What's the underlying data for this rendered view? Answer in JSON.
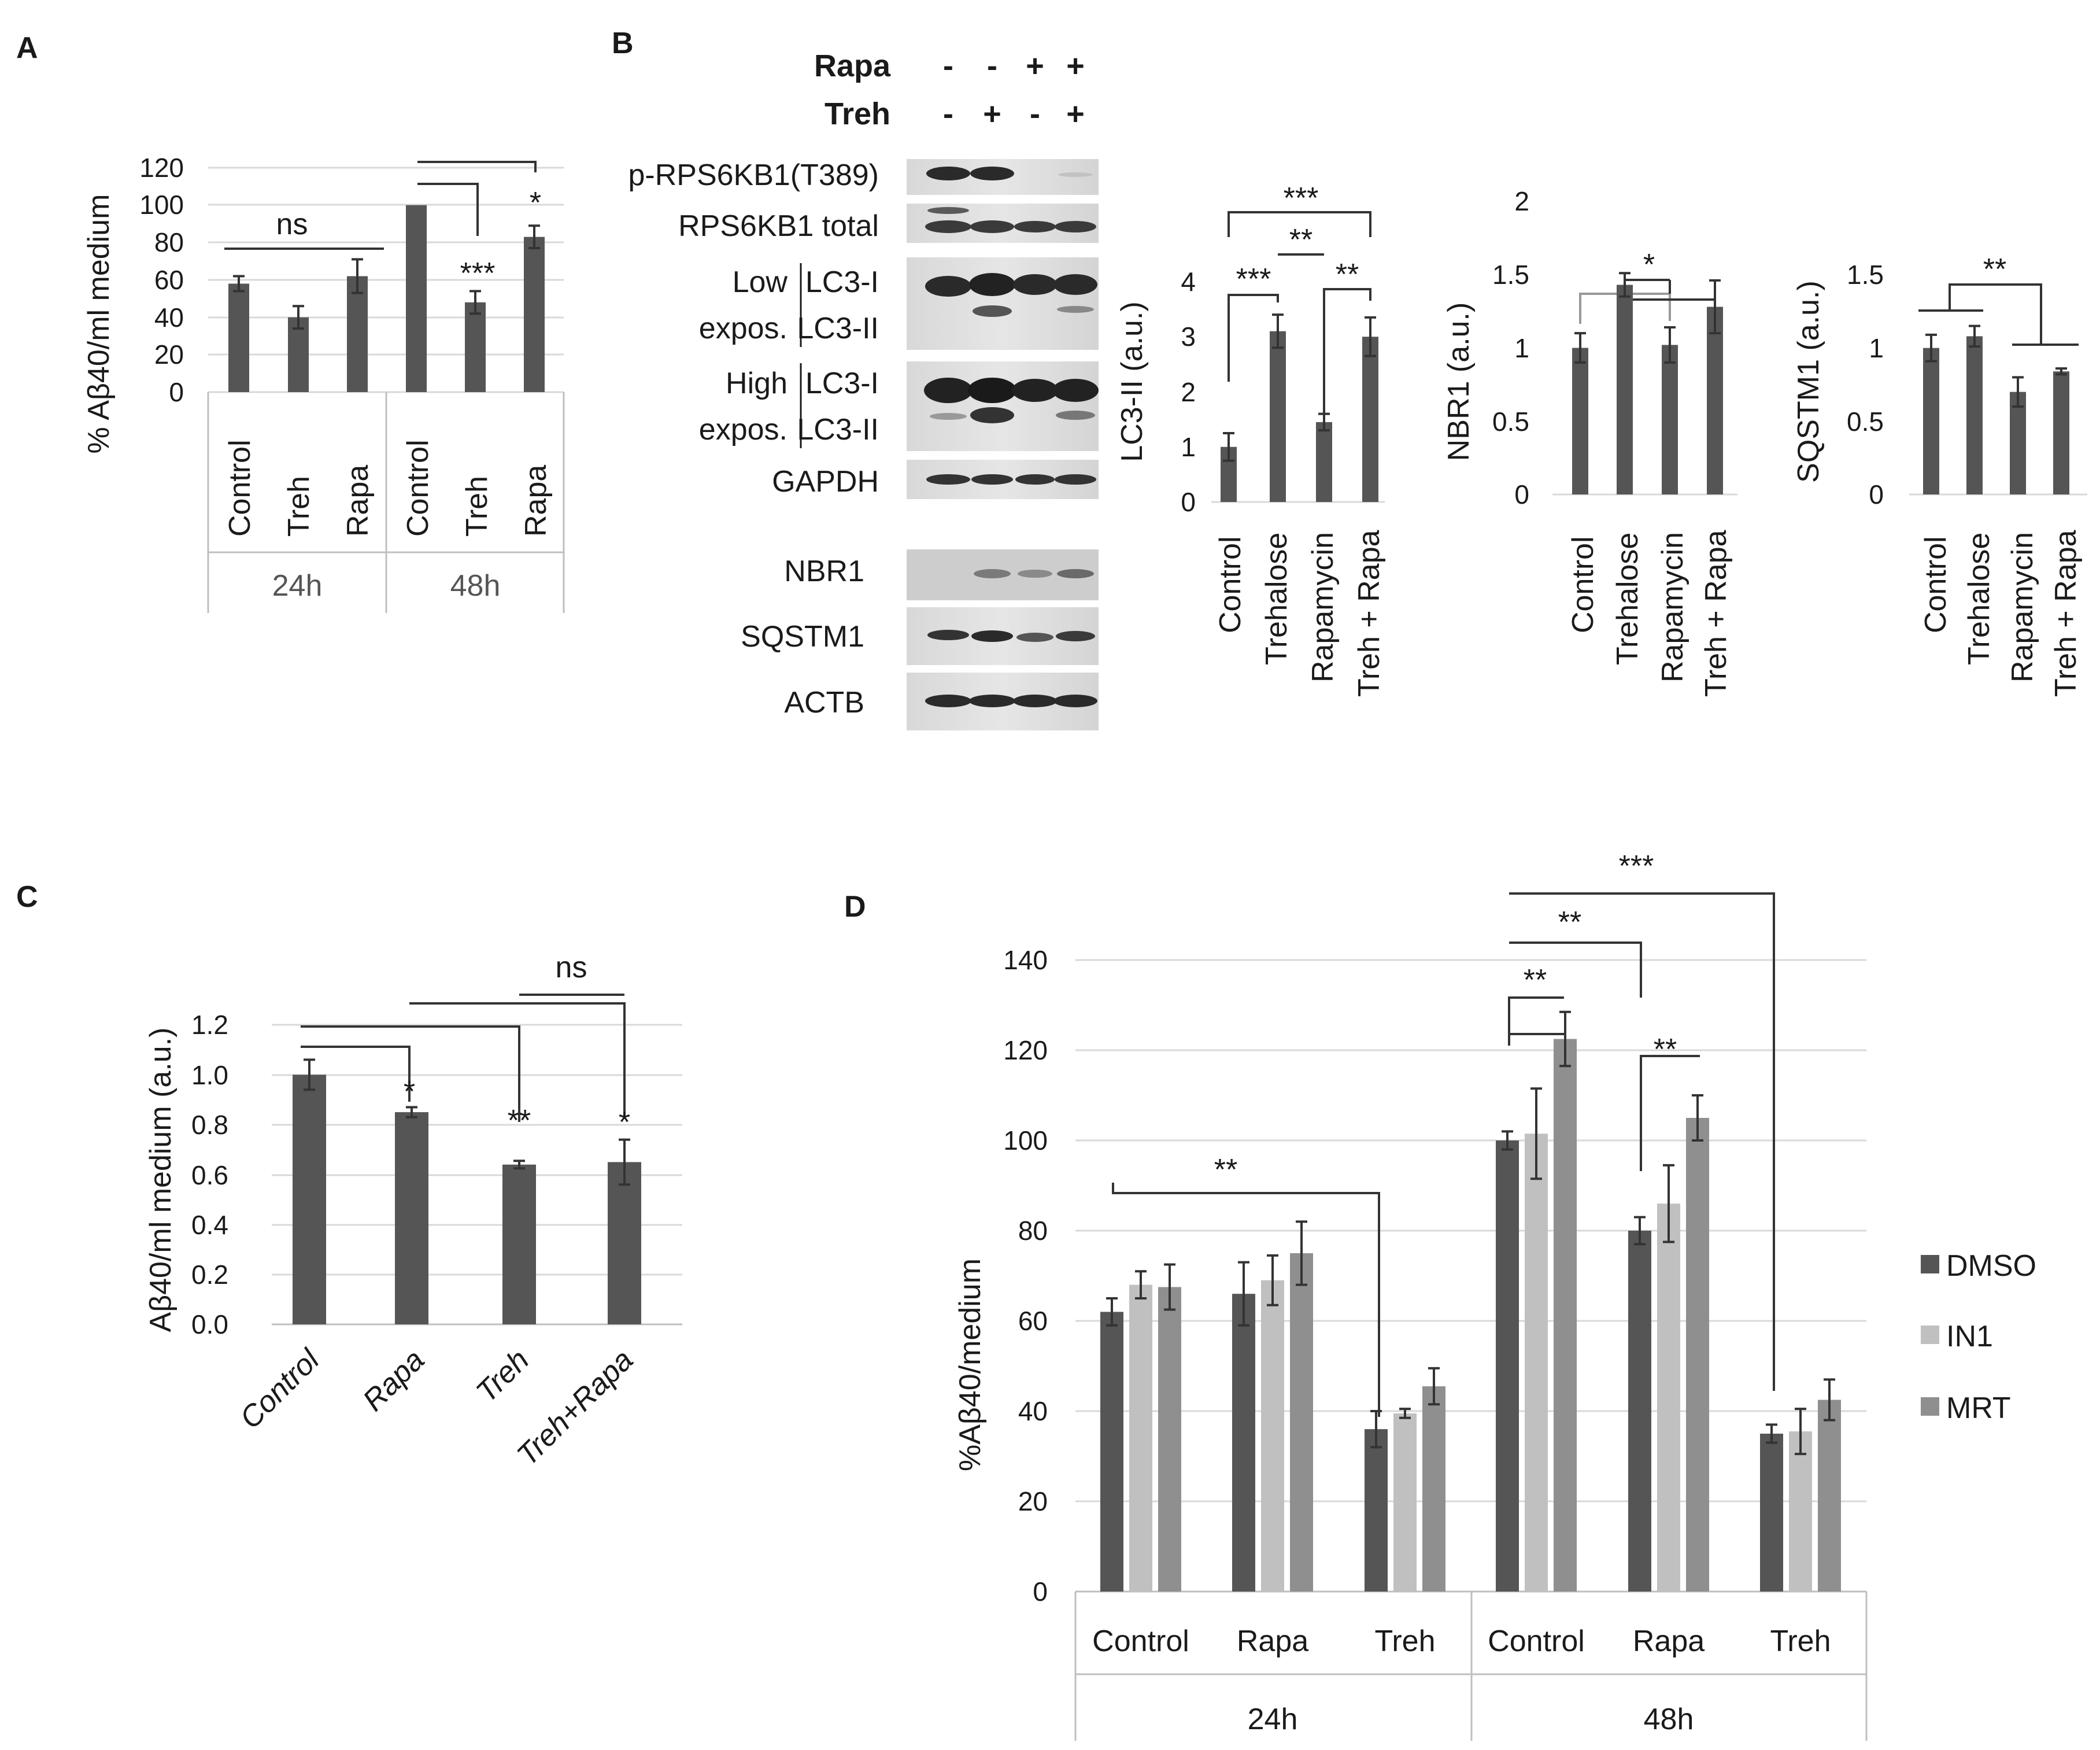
{
  "colors": {
    "bar_dark": "#555555",
    "bar_light": "#c0c0c0",
    "bar_mid": "#8f8f8f",
    "grid": "#d9d9d9",
    "axis": "#bfbfbf",
    "text": "#1a1a1a"
  },
  "chart_data": [
    {
      "panel": "A",
      "type": "bar",
      "ylabel": "% Aβ40/ml medium",
      "ylim": [
        0,
        120
      ],
      "yticks": [
        "0",
        "20",
        "40",
        "60",
        "80",
        "100",
        "120"
      ],
      "categories": [
        "Control",
        "Treh",
        "Rapa",
        "Control",
        "Treh",
        "Rapa"
      ],
      "groups": [
        "24h",
        "48h"
      ],
      "values": [
        58,
        40,
        62,
        100,
        48,
        83
      ],
      "errors": [
        4,
        6,
        9,
        0,
        6,
        6
      ],
      "annotations": [
        "ns",
        "***",
        "*"
      ]
    },
    {
      "panel": "B-LC3-II",
      "type": "bar",
      "ylabel": "LC3-II (a.u.)",
      "ylim": [
        0,
        4
      ],
      "yticks": [
        "0",
        "1",
        "2",
        "3",
        "4"
      ],
      "categories": [
        "Control",
        "Trehalose",
        "Rapamycin",
        "Treh + Rapa"
      ],
      "values": [
        1.0,
        3.1,
        1.45,
        3.0
      ],
      "errors": [
        0.25,
        0.3,
        0.15,
        0.35
      ],
      "annotations": [
        "***",
        "**",
        "***",
        "**"
      ]
    },
    {
      "panel": "B-NBR1",
      "type": "bar",
      "ylabel": "NBR1 (a.u.)",
      "ylim": [
        0,
        2
      ],
      "yticks": [
        "0",
        "0.5",
        "1",
        "1.5",
        "2"
      ],
      "categories": [
        "Control",
        "Trehalose",
        "Rapamycin",
        "Treh + Rapa"
      ],
      "values": [
        1.0,
        1.43,
        1.02,
        1.28
      ],
      "errors": [
        0.1,
        0.08,
        0.12,
        0.18
      ],
      "annotations": [
        "*"
      ]
    },
    {
      "panel": "B-SQSTM1",
      "type": "bar",
      "ylabel": "SQSTM1 (a.u.)",
      "ylim": [
        0,
        1.5
      ],
      "yticks": [
        "0",
        "0.5",
        "1",
        "1.5"
      ],
      "categories": [
        "Control",
        "Trehalose",
        "Rapamycin",
        "Treh + Rapa"
      ],
      "values": [
        1.0,
        1.08,
        0.7,
        0.84
      ],
      "errors": [
        0.09,
        0.07,
        0.1,
        0.02
      ],
      "annotations": [
        "**"
      ]
    },
    {
      "panel": "C",
      "type": "bar",
      "ylabel": "Aβ40/ml medium (a.u.)",
      "ylim": [
        0,
        1.2
      ],
      "yticks": [
        "0.0",
        "0.2",
        "0.4",
        "0.6",
        "0.8",
        "1.0",
        "1.2"
      ],
      "categories": [
        "Control",
        "Rapa",
        "Treh",
        "Treh+Rapa"
      ],
      "values": [
        1.0,
        0.85,
        0.64,
        0.65
      ],
      "errors": [
        0.06,
        0.02,
        0.015,
        0.09
      ],
      "annotations": [
        "*",
        "**",
        "*",
        "ns"
      ]
    },
    {
      "panel": "D",
      "type": "bar",
      "ylabel": "%Aβ40/medium",
      "ylim": [
        0,
        140
      ],
      "yticks": [
        "0",
        "20",
        "40",
        "60",
        "80",
        "100",
        "120",
        "140"
      ],
      "categories": [
        "Control",
        "Rapa",
        "Treh",
        "Control",
        "Rapa",
        "Treh"
      ],
      "groups": [
        "24h",
        "48h"
      ],
      "series": [
        {
          "name": "DMSO",
          "values": [
            62,
            66,
            36,
            100,
            80,
            35
          ],
          "errors": [
            3,
            7,
            4,
            2,
            3,
            2
          ]
        },
        {
          "name": "IN1",
          "values": [
            68,
            69,
            39.5,
            101.5,
            86,
            35.5
          ],
          "errors": [
            3,
            5.5,
            1,
            10,
            8.5,
            5
          ]
        },
        {
          "name": "MRT",
          "values": [
            67.5,
            75,
            45.5,
            122.5,
            105,
            42.5
          ],
          "errors": [
            5,
            7,
            4,
            6,
            5,
            4.5
          ]
        }
      ],
      "annotations": [
        "**",
        "***",
        "**",
        "**",
        "**"
      ]
    }
  ],
  "panels": {
    "a_letter": "A",
    "b_letter": "B",
    "c_letter": "C",
    "d_letter": "D"
  },
  "blot": {
    "rapa_label": "Rapa",
    "treh_label": "Treh",
    "rapa_signs": [
      "-",
      "-",
      "+",
      "+"
    ],
    "treh_signs": [
      "-",
      "+",
      "-",
      "+"
    ],
    "rows": {
      "prps6kb1": "p-RPS6KB1(T389)",
      "rps6kb1": "RPS6KB1 total",
      "low": "Low",
      "expos1": "expos.",
      "lc3i_1": "LC3-I",
      "lc3ii_1": "LC3-II",
      "high": "High",
      "expos2": "expos.",
      "lc3i_2": "LC3-I",
      "lc3ii_2": "LC3-II",
      "gapdh": "GAPDH",
      "nbr1": "NBR1",
      "sqstm1": "SQSTM1",
      "actb": "ACTB"
    }
  }
}
